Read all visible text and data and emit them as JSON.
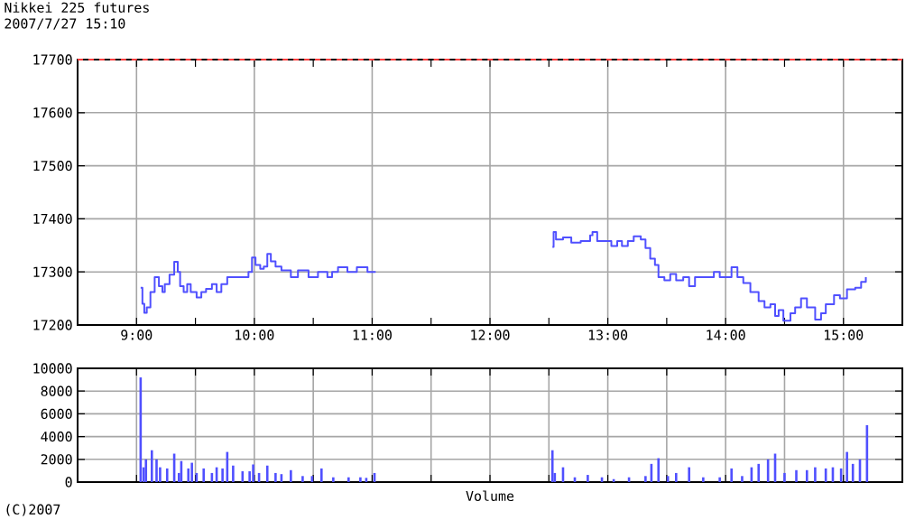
{
  "chart_data": [
    {
      "type": "step",
      "title": "Nikkei 225 futures",
      "subtitle": "2007/7/27 15:10",
      "color": "#5050ff",
      "grid": true,
      "marker": "none",
      "x": [
        9.035,
        9.05,
        9.066,
        9.087,
        9.118,
        9.154,
        9.19,
        9.22,
        9.24,
        9.28,
        9.32,
        9.35,
        9.37,
        9.4,
        9.43,
        9.46,
        9.51,
        9.55,
        9.59,
        9.64,
        9.68,
        9.72,
        9.77,
        9.85,
        9.95,
        9.98,
        10.01,
        10.05,
        10.08,
        10.11,
        10.14,
        10.18,
        10.23,
        10.31,
        10.37,
        10.46,
        10.54,
        10.62,
        10.66,
        10.71,
        10.79,
        10.87,
        10.96,
        11.03,
        11.75,
        12.53,
        12.54,
        12.56,
        12.62,
        12.69,
        12.77,
        12.85,
        12.87,
        12.91,
        12.97,
        13.03,
        13.08,
        13.12,
        13.17,
        13.22,
        13.28,
        13.32,
        13.36,
        13.4,
        13.43,
        13.48,
        13.53,
        13.58,
        13.64,
        13.69,
        13.74,
        13.85,
        13.9,
        13.95,
        14.05,
        14.1,
        14.15,
        14.21,
        14.28,
        14.33,
        14.38,
        14.42,
        14.45,
        14.49,
        14.55,
        14.59,
        14.64,
        14.69,
        14.76,
        14.81,
        14.85,
        14.92,
        14.97,
        15.03,
        15.1,
        15.15,
        15.19
      ],
      "values": [
        17270,
        17240,
        17223,
        17233,
        17262,
        17290,
        17273,
        17262,
        17277,
        17295,
        17319,
        17300,
        17273,
        17262,
        17277,
        17262,
        17252,
        17262,
        17268,
        17277,
        17262,
        17277,
        17290,
        17290,
        17300,
        17327,
        17313,
        17306,
        17310,
        17334,
        17320,
        17310,
        17303,
        17290,
        17303,
        17290,
        17300,
        17290,
        17300,
        17309,
        17300,
        17309,
        17300,
        17300,
        null,
        17347,
        17375,
        17361,
        17365,
        17355,
        17358,
        17369,
        17375,
        17358,
        17358,
        17349,
        17358,
        17349,
        17358,
        17367,
        17361,
        17345,
        17325,
        17313,
        17290,
        17284,
        17296,
        17284,
        17290,
        17273,
        17290,
        17290,
        17300,
        17290,
        17309,
        17290,
        17279,
        17262,
        17245,
        17233,
        17239,
        17217,
        17228,
        17208,
        17222,
        17233,
        17250,
        17233,
        17210,
        17222,
        17239,
        17256,
        17250,
        17267,
        17270,
        17281,
        17290
      ],
      "xlim": [
        8.5,
        15.5
      ],
      "ylim": [
        17200,
        17700
      ],
      "xticks": [
        {
          "value": 9,
          "label": "9:00"
        },
        {
          "value": 9.5,
          "label": null
        },
        {
          "value": 10,
          "label": "10:00"
        },
        {
          "value": 10.5,
          "label": null
        },
        {
          "value": 11,
          "label": "11:00"
        },
        {
          "value": 11.5,
          "label": null
        },
        {
          "value": 12,
          "label": "12:00"
        },
        {
          "value": 12.5,
          "label": null
        },
        {
          "value": 13,
          "label": "13:00"
        },
        {
          "value": 13.5,
          "label": null
        },
        {
          "value": 14,
          "label": "14:00"
        },
        {
          "value": 14.5,
          "label": null
        },
        {
          "value": 15,
          "label": "15:00"
        }
      ],
      "yticks": [
        17200,
        17300,
        17400,
        17500,
        17600,
        17700
      ],
      "ref_lines": [
        {
          "axis": "y",
          "value": 17700,
          "label": null,
          "color": "#ff4040",
          "line_style": "dashed"
        }
      ]
    },
    {
      "type": "bar",
      "xlabel": "Volume",
      "color": "#5050ff",
      "grid": true,
      "tick_labels": "y",
      "annotations": [
        "(C)2007"
      ],
      "x": [
        9.035,
        9.06,
        9.08,
        9.13,
        9.17,
        9.2,
        9.26,
        9.32,
        9.36,
        9.38,
        9.44,
        9.47,
        9.51,
        9.57,
        9.64,
        9.68,
        9.73,
        9.77,
        9.82,
        9.9,
        9.96,
        9.99,
        10.04,
        10.11,
        10.18,
        10.23,
        10.31,
        10.41,
        10.49,
        10.57,
        10.67,
        10.8,
        10.9,
        10.95,
        11.02,
        12.53,
        12.55,
        12.62,
        12.72,
        12.83,
        12.95,
        13.05,
        13.18,
        13.32,
        13.37,
        13.43,
        13.51,
        13.58,
        13.69,
        13.81,
        13.95,
        14.05,
        14.14,
        14.22,
        14.28,
        14.36,
        14.42,
        14.5,
        14.6,
        14.69,
        14.76,
        14.85,
        14.91,
        14.98,
        15.03,
        15.08,
        15.14,
        15.2
      ],
      "values": [
        9200,
        1300,
        2000,
        2800,
        2000,
        1300,
        1200,
        2500,
        800,
        1850,
        1200,
        1700,
        800,
        1200,
        800,
        1300,
        1200,
        2650,
        1450,
        950,
        950,
        1550,
        800,
        1450,
        800,
        700,
        1050,
        530,
        530,
        1200,
        420,
        420,
        420,
        370,
        800,
        2800,
        800,
        1300,
        420,
        630,
        420,
        260,
        420,
        530,
        1600,
        2100,
        530,
        800,
        1300,
        420,
        420,
        1200,
        530,
        1300,
        1600,
        2000,
        2500,
        800,
        1050,
        1050,
        1300,
        1200,
        1300,
        1200,
        2650,
        1600,
        2000,
        5000
      ],
      "xlim": [
        8.5,
        15.5
      ],
      "ylim": [
        0,
        10000
      ],
      "xticks": [
        9,
        9.5,
        10,
        10.5,
        11,
        11.5,
        12,
        12.5,
        13,
        13.5,
        14,
        14.5,
        15
      ],
      "yticks": [
        0,
        2000,
        4000,
        6000,
        8000,
        10000
      ]
    }
  ]
}
